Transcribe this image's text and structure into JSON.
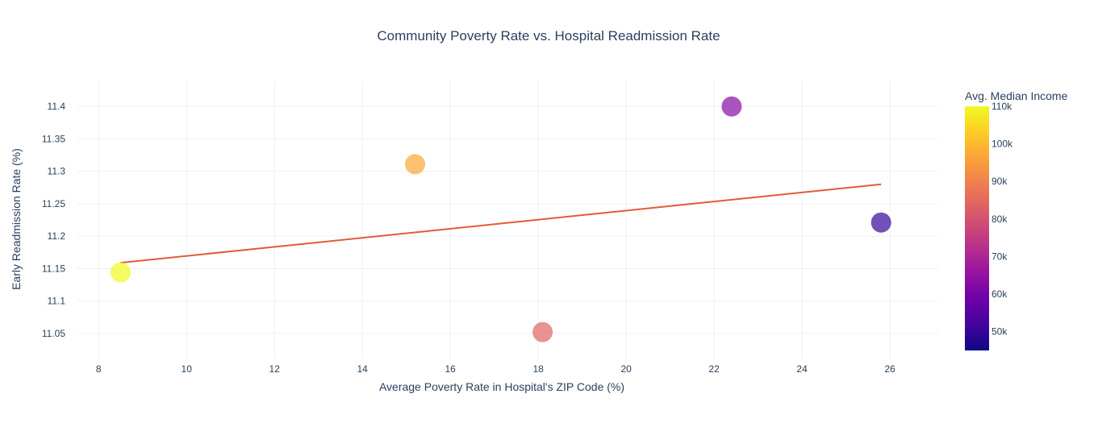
{
  "chart_data": {
    "type": "scatter",
    "title": "Community Poverty Rate vs. Hospital Readmission Rate",
    "xlabel": "Average Poverty Rate in Hospital's ZIP Code (%)",
    "ylabel": "Early Readmission Rate (%)",
    "xlim": [
      7.5,
      27.1
    ],
    "ylim": [
      11.01,
      11.44
    ],
    "x_ticks": [
      8,
      10,
      12,
      14,
      16,
      18,
      20,
      22,
      24,
      26
    ],
    "y_ticks": [
      11.05,
      11.1,
      11.15,
      11.2,
      11.25,
      11.3,
      11.35,
      11.4
    ],
    "grid": true,
    "points": [
      {
        "x": 8.5,
        "y": 11.144,
        "median_income": 110000
      },
      {
        "x": 15.2,
        "y": 11.311,
        "median_income": 97000
      },
      {
        "x": 18.1,
        "y": 11.052,
        "median_income": 84000
      },
      {
        "x": 22.4,
        "y": 11.4,
        "median_income": 63000
      },
      {
        "x": 25.8,
        "y": 11.221,
        "median_income": 50000
      }
    ],
    "trendline": {
      "x": [
        8.5,
        25.8
      ],
      "y": [
        11.159,
        11.28
      ],
      "color": "#e45a3a"
    },
    "colorbar": {
      "title": "Avg. Median Income",
      "range": [
        45000,
        110000
      ],
      "ticks": [
        50000,
        60000,
        70000,
        80000,
        90000,
        100000,
        110000
      ],
      "tick_labels": [
        "50k",
        "60k",
        "70k",
        "80k",
        "90k",
        "100k",
        "110k"
      ],
      "colorscale": [
        "#0d0887",
        "#46039f",
        "#7201a8",
        "#9c179e",
        "#bd3786",
        "#d8576b",
        "#ed7953",
        "#fb9f3a",
        "#fdca26",
        "#f0f921"
      ]
    }
  }
}
